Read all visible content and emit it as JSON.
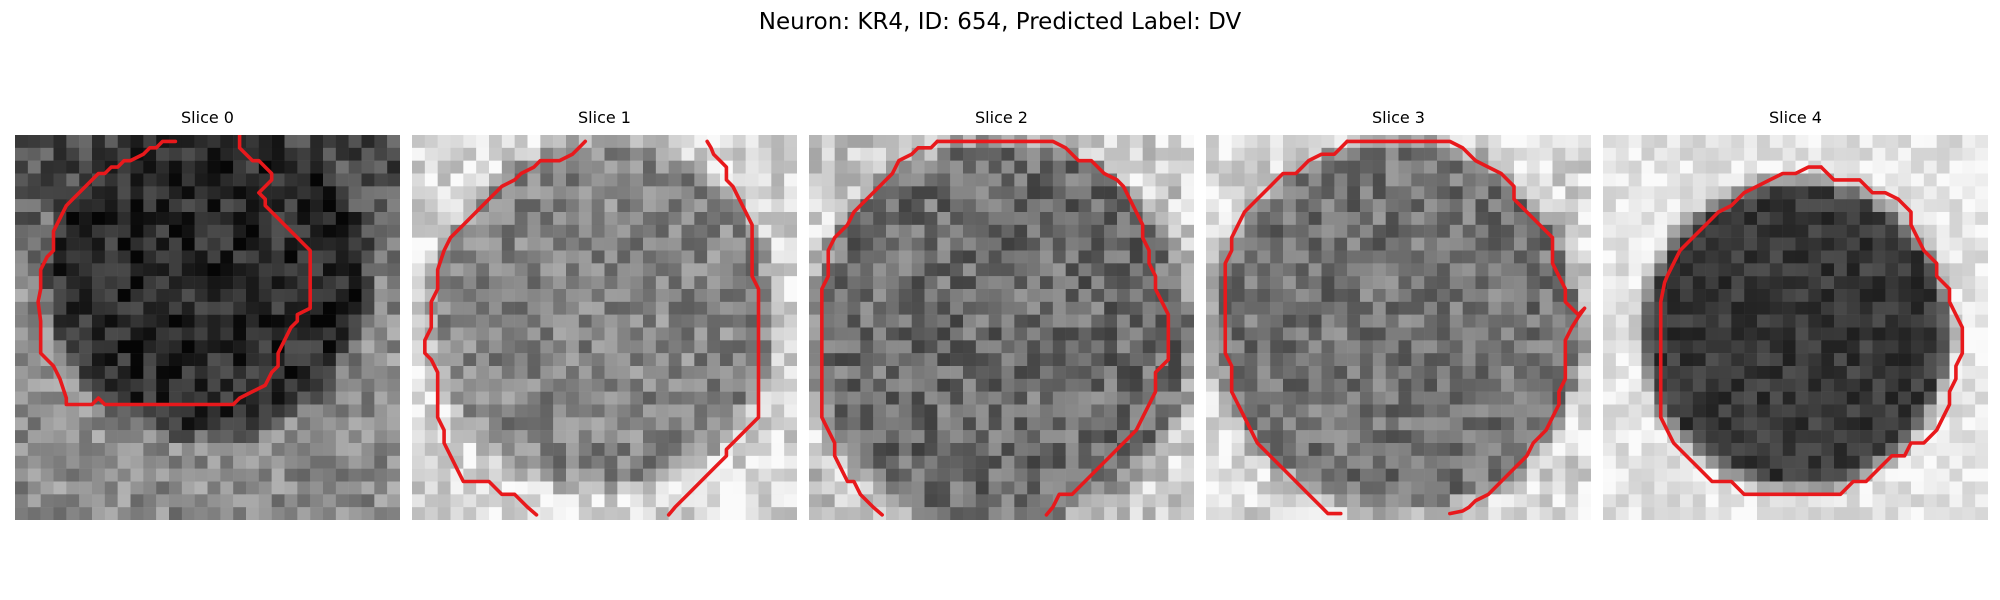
{
  "figure": {
    "title": "Neuron: KR4, ID: 654, Predicted Label: DV"
  },
  "panels": [
    {
      "title": "Slice 0"
    },
    {
      "title": "Slice 1"
    },
    {
      "title": "Slice 2"
    },
    {
      "title": "Slice 3"
    },
    {
      "title": "Slice 4"
    }
  ],
  "colors": {
    "contour": "#e8191c",
    "background": "#ffffff"
  }
}
